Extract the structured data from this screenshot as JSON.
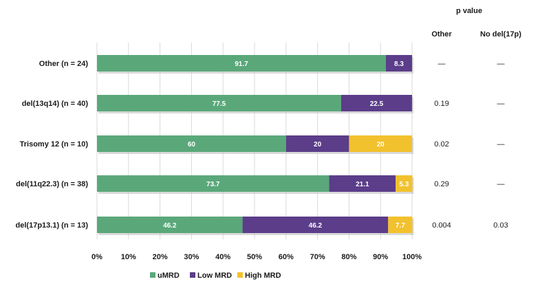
{
  "chart_data": {
    "type": "bar",
    "orientation": "horizontal",
    "stacked": true,
    "categories": [
      "Other (n = 24)",
      "del(13q14)  (n = 40)",
      "Trisomy 12 (n = 10)",
      "del(11q22.3) (n = 38)",
      "del(17p13.1) (n = 13)"
    ],
    "series": [
      {
        "name": "uMRD",
        "color": "#5aa87a",
        "values": [
          91.7,
          77.5,
          60,
          73.7,
          46.2
        ]
      },
      {
        "name": "Low MRD",
        "color": "#5b3d8a",
        "values": [
          8.3,
          22.5,
          20,
          21.1,
          46.2
        ]
      },
      {
        "name": "High MRD",
        "color": "#f2c12e",
        "values": [
          0,
          0,
          20,
          5.3,
          7.7
        ]
      }
    ],
    "xlim": [
      0,
      100
    ],
    "xticks": [
      "0%",
      "10%",
      "20%",
      "30%",
      "40%",
      "50%",
      "60%",
      "70%",
      "80%",
      "90%",
      "100%"
    ],
    "grid": "vertical",
    "legend_position": "bottom",
    "pvalue_table": {
      "title": "p value",
      "columns": [
        "Other",
        "No del(17p)"
      ],
      "rows": [
        [
          "—",
          "—"
        ],
        [
          "0.19",
          "—"
        ],
        [
          "0.02",
          "—"
        ],
        [
          "0.29",
          "—"
        ],
        [
          "0.004",
          "0.03"
        ]
      ]
    }
  }
}
